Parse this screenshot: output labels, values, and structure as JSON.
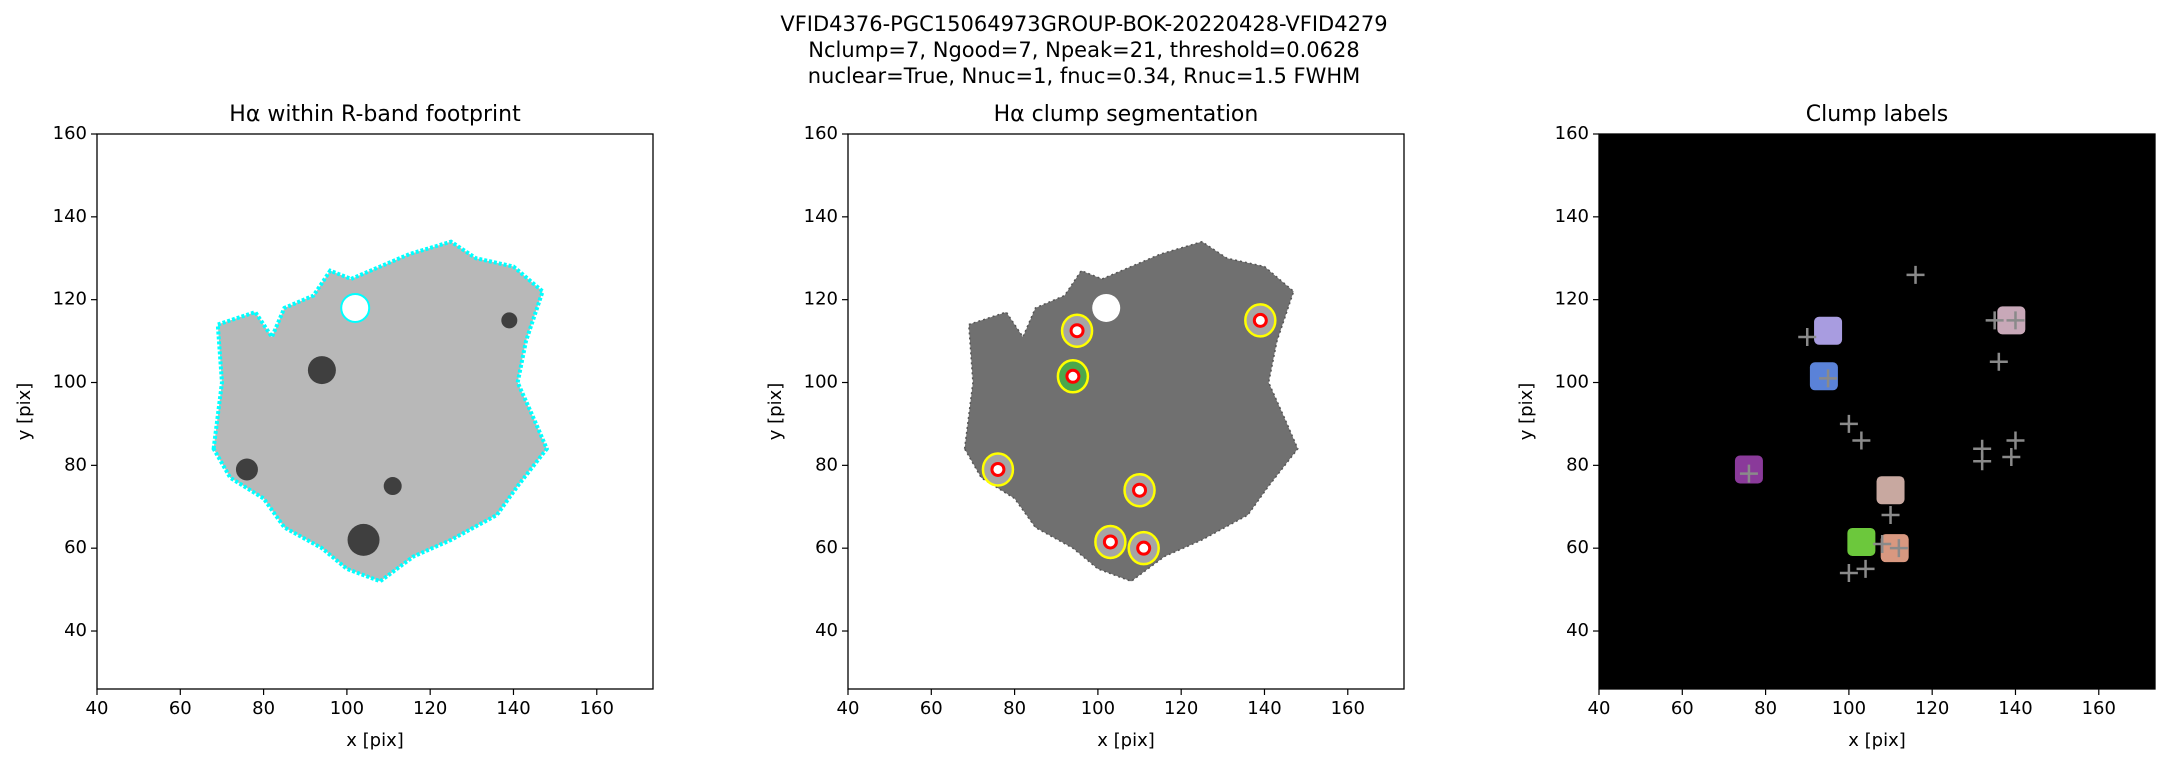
{
  "figure_title": [
    "VFID4376-PGC15064973GROUP-BOK-20220428-VFID4279",
    "Nclump=7, Ngood=7, Npeak=21, threshold=0.0628",
    "nuclear=True, Nnuc=1, fnuc=0.34, Rnuc=1.5 FWHM"
  ],
  "chart_data": [
    {
      "type": "image",
      "title": "Hα within R-band footprint",
      "xlabel": "x [pix]",
      "ylabel": "y [pix]",
      "xlim": [
        40,
        173.5
      ],
      "ylim": [
        26,
        160
      ],
      "xticks": [
        40,
        60,
        80,
        100,
        120,
        140,
        160
      ],
      "yticks": [
        40,
        60,
        80,
        100,
        120,
        140,
        160
      ],
      "background": "#ffffff",
      "contour_color": "#00ffff"
    },
    {
      "type": "image",
      "title": "Hα clump segmentation",
      "xlabel": "x [pix]",
      "ylabel": "y [pix]",
      "xlim": [
        40,
        173.5
      ],
      "ylim": [
        26,
        160
      ],
      "xticks": [
        40,
        60,
        80,
        100,
        120,
        140,
        160
      ],
      "yticks": [
        40,
        60,
        80,
        100,
        120,
        140,
        160
      ],
      "background": "#ffffff",
      "points": {
        "x": [
          95,
          94,
          76,
          110,
          103,
          111,
          139
        ],
        "y": [
          112.5,
          101.5,
          79,
          74,
          61.5,
          60,
          115
        ],
        "color": "#ff0000",
        "contour_color": "#ffff00"
      }
    },
    {
      "type": "image",
      "title": "Clump labels",
      "xlabel": "x [pix]",
      "ylabel": "y [pix]",
      "xlim": [
        40,
        173.5
      ],
      "ylim": [
        26,
        160
      ],
      "xticks": [
        40,
        60,
        80,
        100,
        120,
        140,
        160
      ],
      "yticks": [
        40,
        60,
        80,
        100,
        120,
        140,
        160
      ],
      "background": "#000000",
      "clumps": {
        "x": [
          95,
          94,
          76,
          110,
          103,
          111,
          139
        ],
        "y": [
          112.5,
          101.5,
          79,
          74,
          61.5,
          60,
          115
        ],
        "colors": [
          "#a89ce0",
          "#5a82d8",
          "#8a3a9a",
          "#c8a8a0",
          "#6cc83c",
          "#d89880",
          "#c8a8b8"
        ]
      },
      "peaks": {
        "x": [
          116,
          90,
          135,
          140,
          136,
          100,
          103,
          132,
          132,
          140,
          139,
          110,
          100,
          108,
          95,
          76,
          112,
          104
        ],
        "y": [
          126,
          111,
          115,
          115,
          105,
          90,
          86,
          84,
          81,
          86,
          82,
          68,
          54,
          61,
          101,
          78,
          60,
          55
        ],
        "color": "#8a8a8a"
      }
    }
  ]
}
